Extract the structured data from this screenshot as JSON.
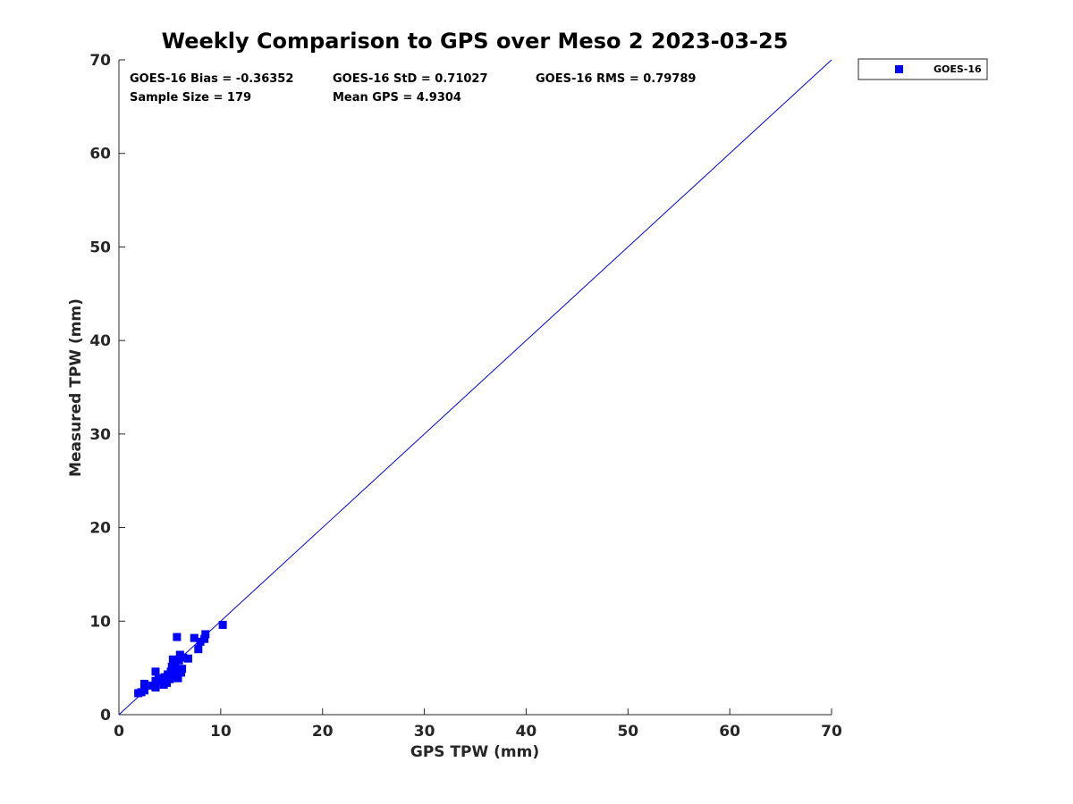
{
  "chart_data": {
    "type": "scatter",
    "title": "Weekly Comparison to GPS over Meso 2 2023-03-25",
    "xlabel": "GPS TPW (mm)",
    "ylabel": "Measured TPW (mm)",
    "xlim": [
      0,
      70
    ],
    "ylim": [
      0,
      70
    ],
    "xticks": [
      "0",
      "10",
      "20",
      "30",
      "40",
      "50",
      "60",
      "70"
    ],
    "yticks": [
      "0",
      "10",
      "20",
      "30",
      "40",
      "50",
      "60",
      "70"
    ],
    "grid": false,
    "legend_position": "outside top-right",
    "stats": [
      "GOES-16 Bias = -0.36352",
      "GOES-16 StD = 0.71027",
      "GOES-16 RMS = 0.79789",
      "Sample Size = 179",
      "Mean GPS = 4.9304"
    ],
    "reference_line": {
      "x": [
        0,
        70
      ],
      "y": [
        0,
        70
      ],
      "color": "#0000ff"
    },
    "series": [
      {
        "name": "GOES-16",
        "color": "#0000ff",
        "marker": "square",
        "points": [
          [
            1.9,
            2.3
          ],
          [
            2.2,
            2.4
          ],
          [
            2.5,
            2.6
          ],
          [
            2.5,
            3.3
          ],
          [
            3.3,
            3.1
          ],
          [
            3.6,
            2.9
          ],
          [
            3.6,
            3.6
          ],
          [
            3.6,
            4.6
          ],
          [
            3.9,
            3.9
          ],
          [
            4.2,
            3.6
          ],
          [
            4.4,
            3.2
          ],
          [
            4.5,
            4.0
          ],
          [
            4.7,
            3.4
          ],
          [
            4.8,
            4.3
          ],
          [
            5.0,
            3.8
          ],
          [
            5.1,
            4.6
          ],
          [
            5.2,
            5.1
          ],
          [
            5.3,
            5.9
          ],
          [
            5.4,
            4.1
          ],
          [
            5.5,
            5.3
          ],
          [
            5.6,
            4.6
          ],
          [
            5.7,
            8.3
          ],
          [
            5.8,
            3.9
          ],
          [
            5.9,
            5.8
          ],
          [
            6.0,
            6.4
          ],
          [
            6.1,
            4.5
          ],
          [
            6.2,
            4.9
          ],
          [
            6.3,
            6.1
          ],
          [
            6.8,
            6.0
          ],
          [
            7.4,
            8.2
          ],
          [
            7.8,
            7.0
          ],
          [
            8.0,
            7.8
          ],
          [
            8.4,
            8.1
          ],
          [
            8.5,
            8.6
          ],
          [
            10.2,
            9.6
          ]
        ]
      }
    ]
  }
}
